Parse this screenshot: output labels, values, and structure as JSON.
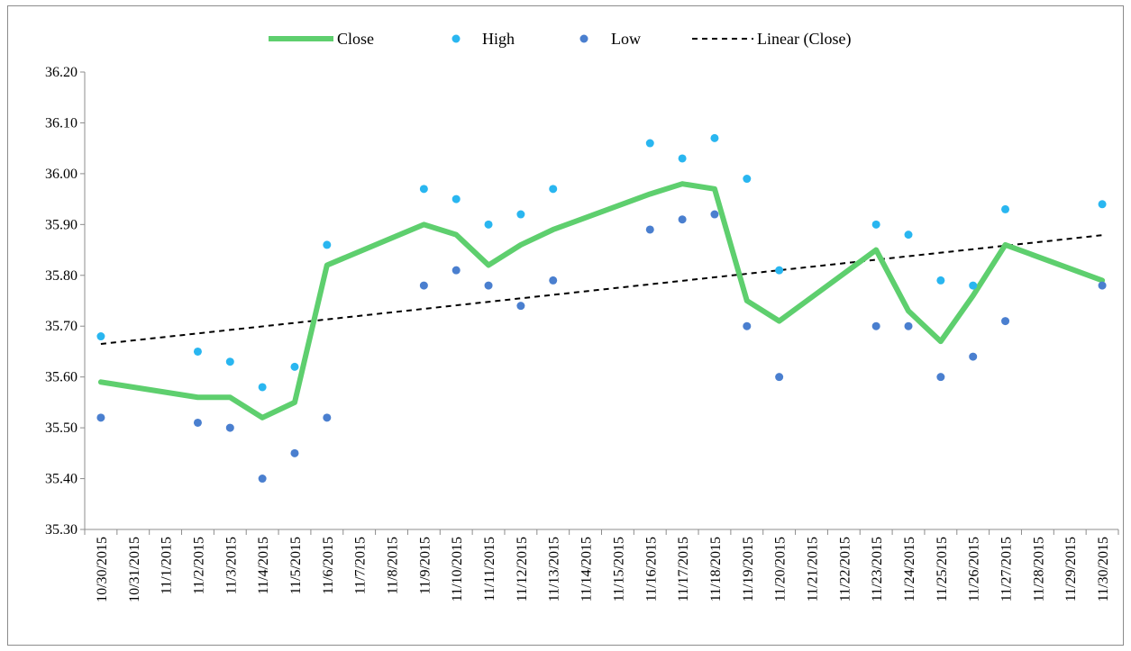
{
  "chart_data": {
    "type": "line",
    "categories": [
      "10/30/2015",
      "10/31/2015",
      "11/1/2015",
      "11/2/2015",
      "11/3/2015",
      "11/4/2015",
      "11/5/2015",
      "11/6/2015",
      "11/7/2015",
      "11/8/2015",
      "11/9/2015",
      "11/10/2015",
      "11/11/2015",
      "11/12/2015",
      "11/13/2015",
      "11/14/2015",
      "11/15/2015",
      "11/16/2015",
      "11/17/2015",
      "11/18/2015",
      "11/19/2015",
      "11/20/2015",
      "11/21/2015",
      "11/22/2015",
      "11/23/2015",
      "11/24/2015",
      "11/25/2015",
      "11/26/2015",
      "11/27/2015",
      "11/28/2015",
      "11/29/2015",
      "11/30/2015"
    ],
    "series": [
      {
        "name": "Close",
        "kind": "line",
        "color": "#5ecf6e",
        "values": [
          35.59,
          null,
          null,
          35.56,
          35.56,
          35.52,
          35.55,
          35.82,
          null,
          null,
          35.9,
          35.88,
          35.82,
          35.86,
          35.89,
          null,
          null,
          35.96,
          35.98,
          35.97,
          35.75,
          35.71,
          null,
          null,
          35.85,
          35.73,
          35.67,
          35.76,
          35.86,
          null,
          null,
          35.79
        ]
      },
      {
        "name": "High",
        "kind": "scatter",
        "color": "#29b6f0",
        "values": [
          35.68,
          null,
          null,
          35.65,
          35.63,
          35.58,
          35.62,
          35.86,
          null,
          null,
          35.97,
          35.95,
          35.9,
          35.92,
          35.97,
          null,
          null,
          36.06,
          36.03,
          36.07,
          35.99,
          35.81,
          null,
          null,
          35.9,
          35.88,
          35.79,
          35.78,
          35.93,
          null,
          null,
          35.94
        ]
      },
      {
        "name": "Low",
        "kind": "scatter",
        "color": "#4a7fcf",
        "values": [
          35.52,
          null,
          null,
          35.51,
          35.5,
          35.4,
          35.45,
          35.52,
          null,
          null,
          35.78,
          35.81,
          35.78,
          35.74,
          35.79,
          null,
          null,
          35.89,
          35.91,
          35.92,
          35.7,
          35.6,
          null,
          null,
          35.7,
          35.7,
          35.6,
          35.64,
          35.71,
          null,
          null,
          35.78
        ]
      },
      {
        "name": "Linear (Close)",
        "kind": "trendline",
        "color": "#000000",
        "start": 35.665,
        "end": 35.879
      }
    ],
    "yticks": [
      "35.30",
      "35.40",
      "35.50",
      "35.60",
      "35.70",
      "35.80",
      "35.90",
      "36.00",
      "36.10",
      "36.20"
    ],
    "ylim": [
      35.3,
      36.2
    ],
    "title": "",
    "xlabel": "",
    "ylabel": "",
    "legend_position": "top",
    "grid": false
  }
}
